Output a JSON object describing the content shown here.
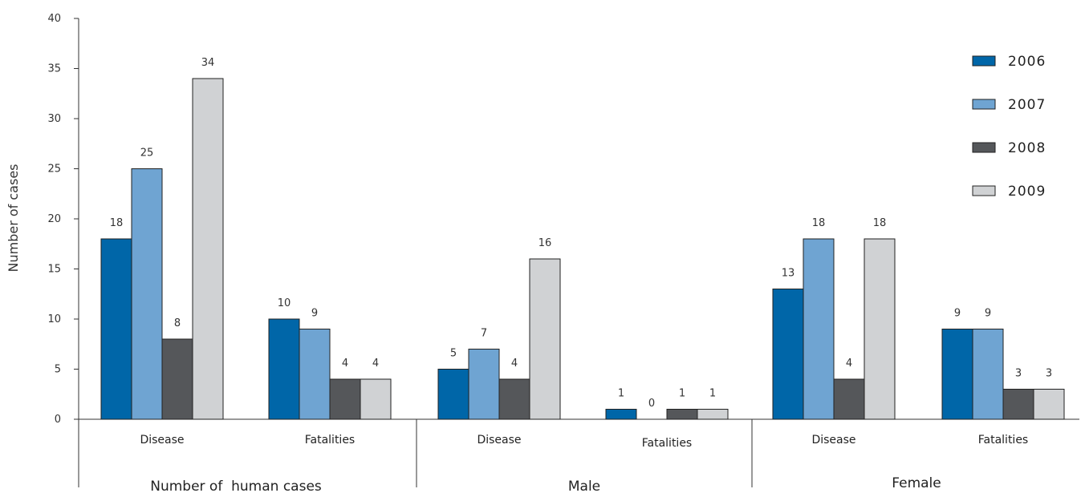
{
  "chart_data": {
    "type": "bar",
    "title": "",
    "ylabel": "Number of cases",
    "ylim": [
      0,
      40
    ],
    "yticks": [
      0,
      5,
      10,
      15,
      20,
      25,
      30,
      35,
      40
    ],
    "groups": [
      {
        "label": "Number of  human cases",
        "categories": [
          "Disease",
          "Fatalities"
        ]
      },
      {
        "label": "Male",
        "categories": [
          "Disease",
          "Fatalities"
        ]
      },
      {
        "label": "Female",
        "categories": [
          "Disease",
          "Fatalities"
        ]
      }
    ],
    "categories": [
      "Disease",
      "Fatalities",
      "Disease",
      "Fatalities",
      "Disease",
      "Fatalities"
    ],
    "series": [
      {
        "name": "2006",
        "color": "#0066a8",
        "values": [
          18,
          10,
          5,
          1,
          13,
          9
        ]
      },
      {
        "name": "2007",
        "color": "#6fa4d2",
        "values": [
          25,
          9,
          7,
          0,
          18,
          9
        ]
      },
      {
        "name": "2008",
        "color": "#55575a",
        "values": [
          8,
          4,
          4,
          1,
          4,
          3
        ]
      },
      {
        "name": "2009",
        "color": "#d0d2d4",
        "values": [
          34,
          4,
          16,
          1,
          18,
          3
        ]
      }
    ],
    "legend_position": "top-right",
    "grid": false
  }
}
